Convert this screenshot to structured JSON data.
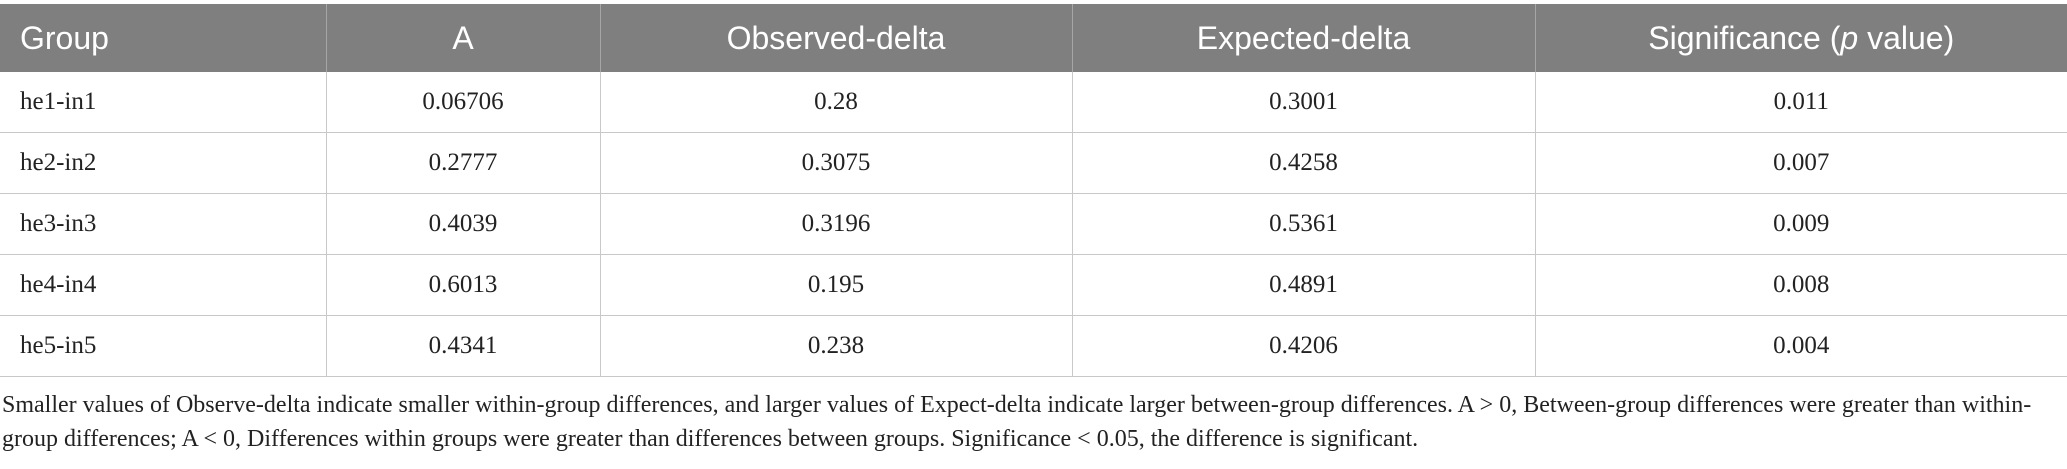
{
  "table": {
    "headers": {
      "group": "Group",
      "a": "A",
      "observed": "Observed-delta",
      "expected": "Expected-delta",
      "significance_prefix": "Significance (",
      "significance_p": "p",
      "significance_suffix": " value)"
    },
    "rows": [
      [
        "he1-in1",
        "0.06706",
        "0.28",
        "0.3001",
        "0.011"
      ],
      [
        "he2-in2",
        "0.2777",
        "0.3075",
        "0.4258",
        "0.007"
      ],
      [
        "he3-in3",
        "0.4039",
        "0.3196",
        "0.5361",
        "0.009"
      ],
      [
        "he4-in4",
        "0.6013",
        "0.195",
        "0.4891",
        "0.008"
      ],
      [
        "he5-in5",
        "0.4341",
        "0.238",
        "0.4206",
        "0.004"
      ]
    ]
  },
  "footnote": "Smaller values of Observe-delta indicate smaller within-group differences, and larger values of Expect-delta indicate larger between-group differences. A > 0, Between-group differences were greater than within-group differences; A < 0, Differences within groups were greater than differences between groups. Significance < 0.05, the difference is significant.",
  "colors": {
    "header_bg": "#7f7f7f",
    "header_text": "#ffffff",
    "grid": "#c8c8c8"
  }
}
